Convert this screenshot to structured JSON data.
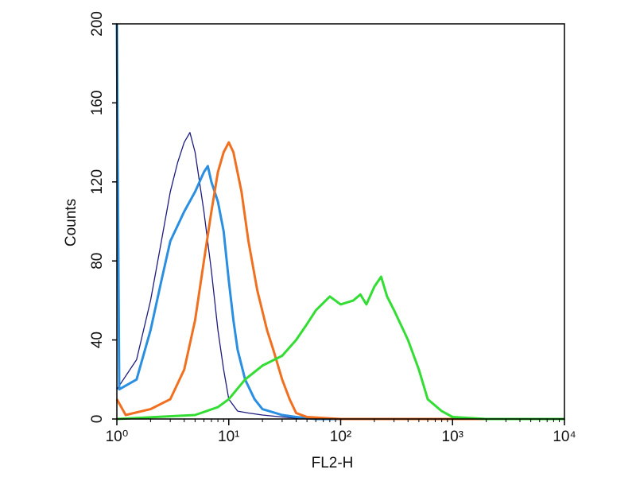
{
  "chart_data": {
    "type": "line",
    "x_label": "FL2-H",
    "y_label": "Counts",
    "log_x": true,
    "xlim": [
      1,
      10000
    ],
    "xticks": [
      {
        "value": 1,
        "label": "10⁰"
      },
      {
        "value": 10,
        "label": "10¹"
      },
      {
        "value": 100,
        "label": "10²"
      },
      {
        "value": 1000,
        "label": "10³"
      },
      {
        "value": 10000,
        "label": "10⁴"
      }
    ],
    "ylim": [
      0,
      200
    ],
    "yticks": [
      0,
      40,
      80,
      120,
      160,
      200
    ],
    "series": [
      {
        "color": "#1c1c80",
        "width": 1.3,
        "x": [
          1,
          1.5,
          2,
          2.5,
          3,
          3.5,
          4,
          4.5,
          5,
          6,
          7,
          8,
          9,
          10,
          12,
          15,
          20,
          30,
          50,
          10000
        ],
        "values": [
          15,
          30,
          60,
          90,
          115,
          130,
          140,
          145,
          135,
          105,
          75,
          45,
          25,
          10,
          4,
          3,
          2,
          1,
          0,
          0
        ]
      },
      {
        "color": "#2a8fe0",
        "width": 3,
        "x": [
          1,
          1.05,
          1.5,
          2,
          2.5,
          3,
          4,
          5,
          6,
          6.5,
          7,
          8,
          9,
          10,
          11,
          12,
          14,
          17,
          20,
          30,
          40,
          60,
          10000
        ],
        "values": [
          200,
          15,
          20,
          45,
          70,
          90,
          105,
          115,
          125,
          128,
          120,
          110,
          95,
          70,
          50,
          35,
          20,
          10,
          5,
          2,
          1,
          0,
          0
        ]
      },
      {
        "color": "#f07020",
        "width": 3,
        "x": [
          1,
          1.2,
          2,
          3,
          4,
          5,
          6,
          7,
          8,
          9,
          10,
          11,
          13,
          15,
          18,
          22,
          25,
          30,
          35,
          40,
          50,
          100,
          10000
        ],
        "values": [
          10,
          2,
          5,
          10,
          25,
          50,
          80,
          105,
          125,
          135,
          140,
          135,
          115,
          90,
          65,
          45,
          35,
          20,
          10,
          3,
          1,
          0,
          0
        ]
      },
      {
        "color": "#33dd33",
        "width": 3,
        "x": [
          1,
          5,
          8,
          10,
          14,
          20,
          30,
          40,
          50,
          60,
          80,
          100,
          130,
          150,
          170,
          200,
          230,
          260,
          300,
          400,
          500,
          600,
          800,
          1000,
          2000,
          10000
        ],
        "values": [
          0,
          2,
          6,
          10,
          20,
          27,
          32,
          40,
          48,
          55,
          62,
          58,
          60,
          63,
          58,
          67,
          72,
          62,
          55,
          40,
          25,
          10,
          4,
          1,
          0,
          0
        ]
      }
    ]
  }
}
